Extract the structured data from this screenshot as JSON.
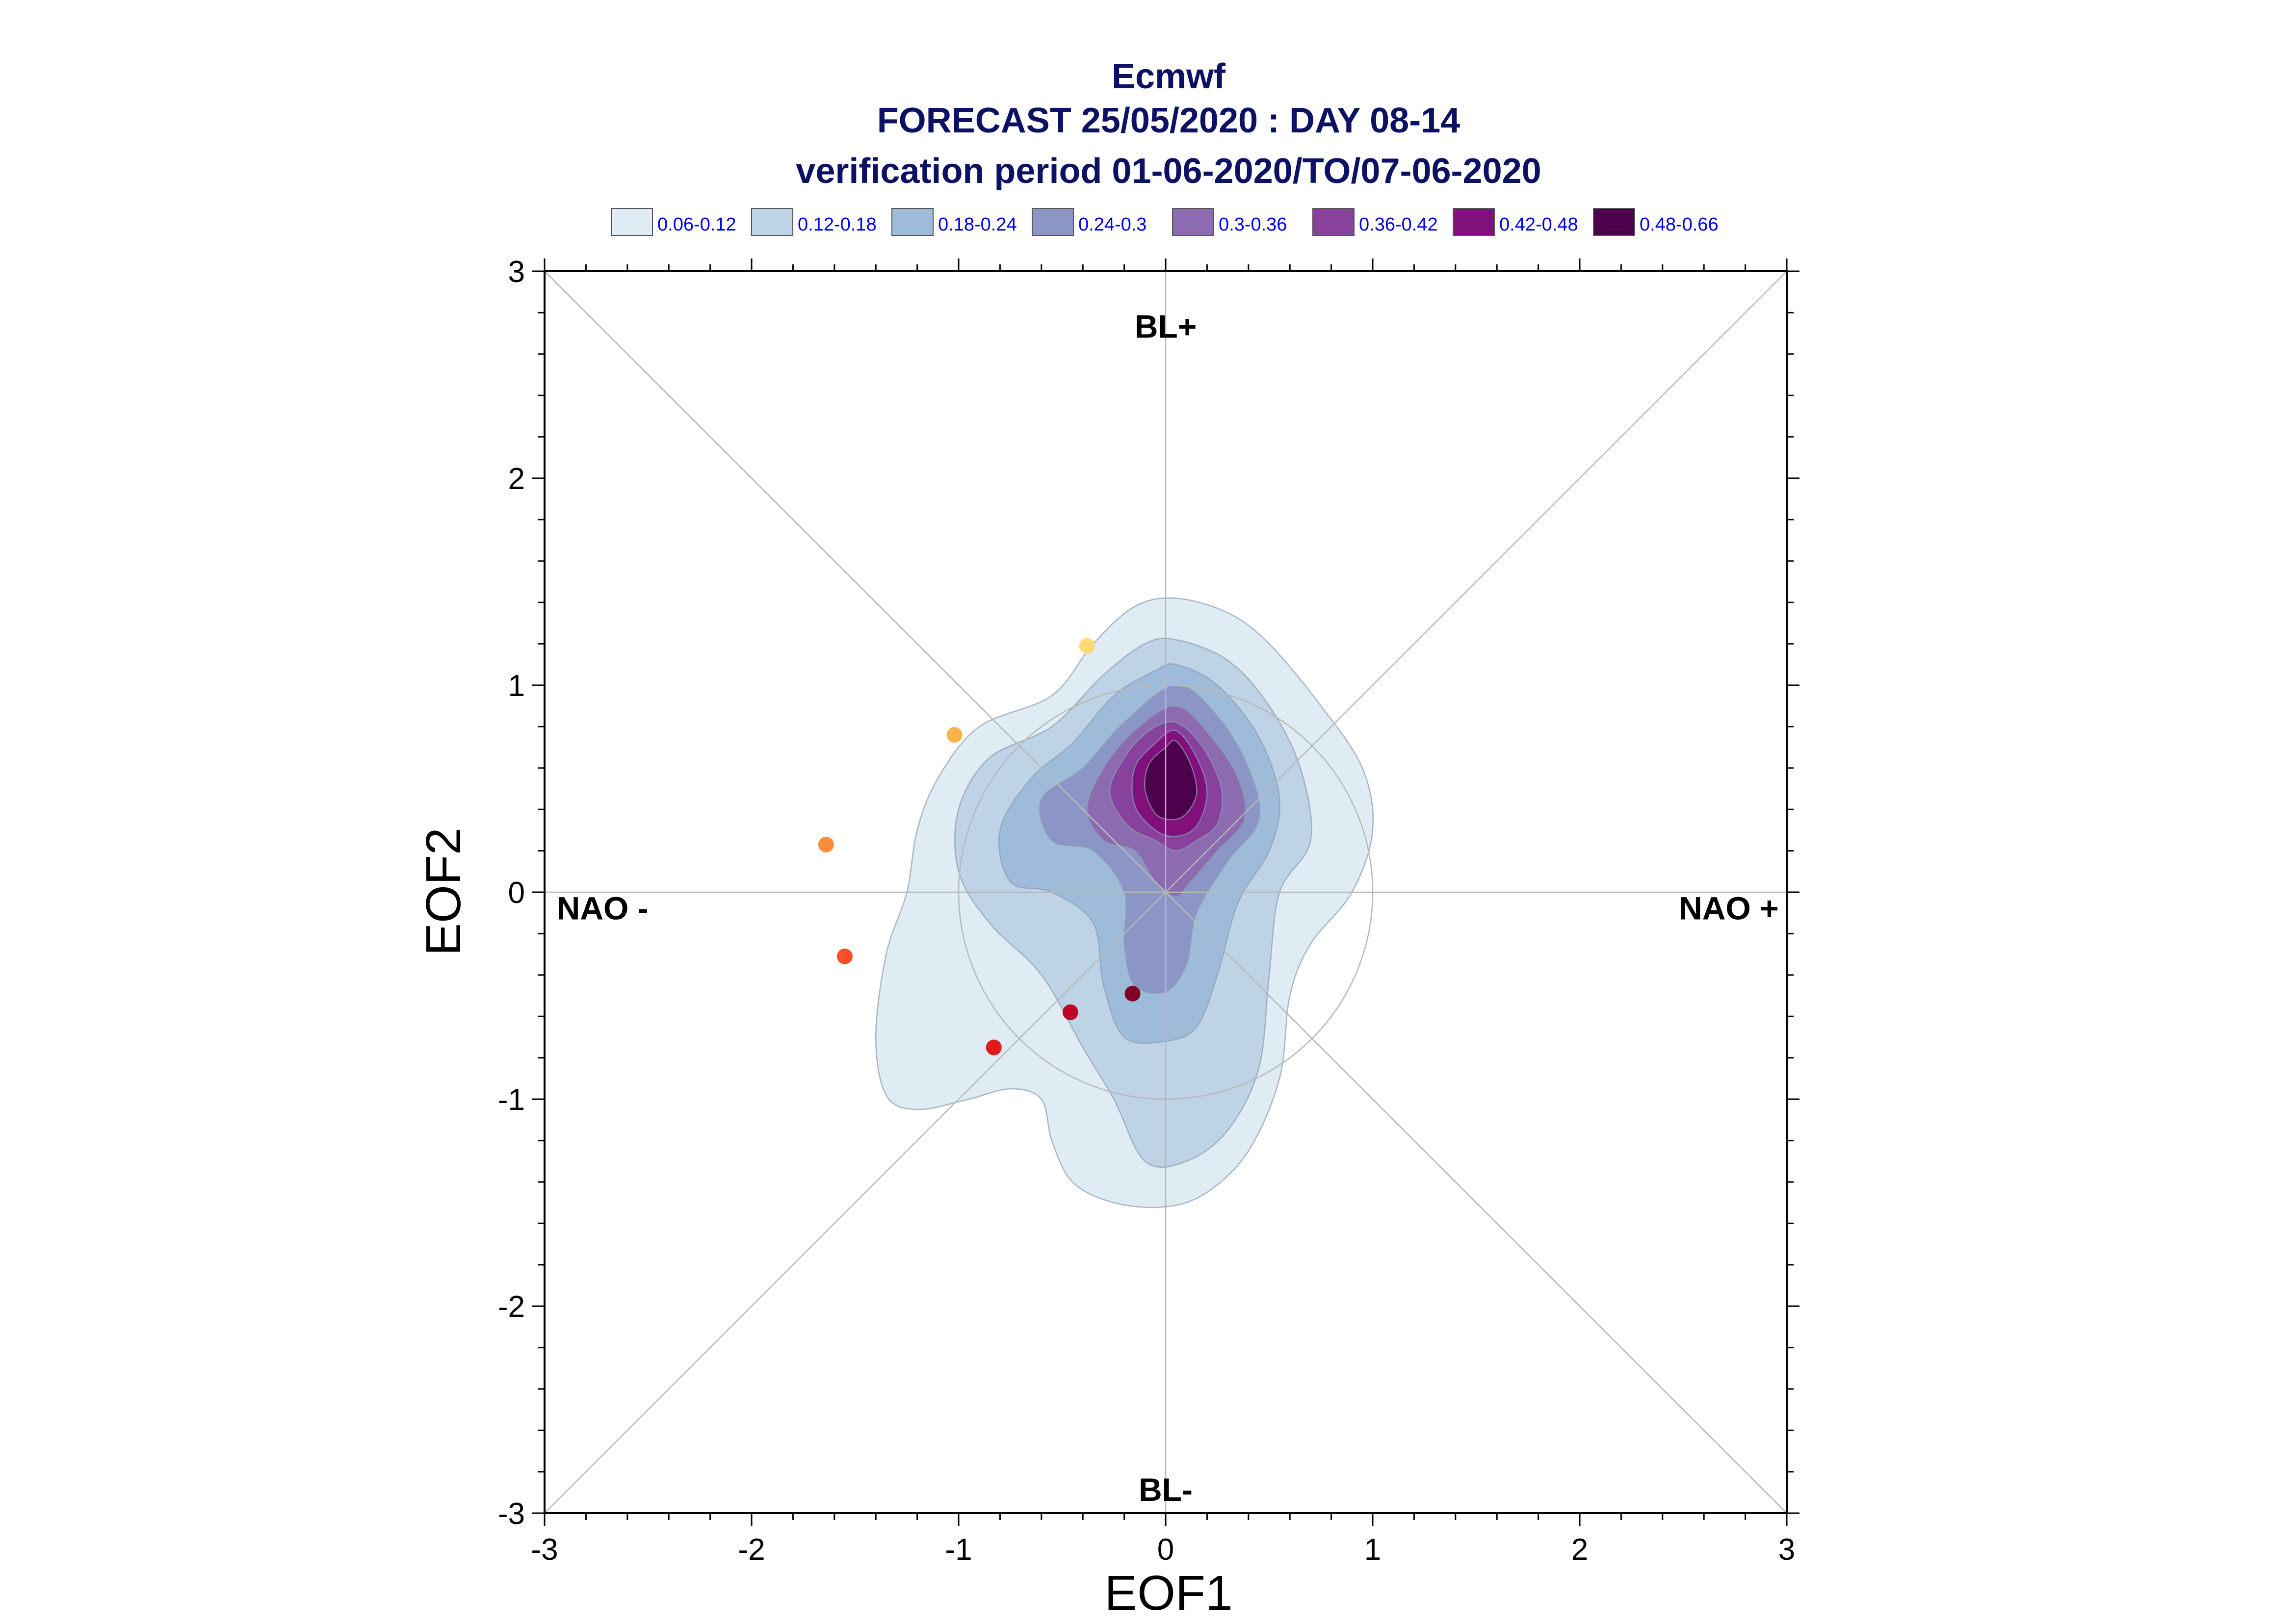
{
  "chart_data": {
    "type": "scatter",
    "title": "Ecmwf",
    "subtitle": "FORECAST 25/05/2020 : DAY 08-14",
    "subtitle2": "verification period 01-06-2020/TO/07-06-2020",
    "xlabel": "EOF1",
    "ylabel": "EOF2",
    "xlim": [
      -3,
      3
    ],
    "ylim": [
      -3,
      3
    ],
    "x_ticks": [
      "-3",
      "-2",
      "-1",
      "0",
      "1",
      "2",
      "3"
    ],
    "y_ticks": [
      "-3",
      "-2",
      "-1",
      "0",
      "1",
      "2",
      "3"
    ],
    "grid": false,
    "reference_circle_radius": 1,
    "regime_labels": [
      {
        "text": "BL+",
        "x": 0,
        "y": 2.72
      },
      {
        "text": "BL-",
        "x": 0,
        "y": -2.9
      },
      {
        "text": "NAO -",
        "x": -2.72,
        "y": -0.09
      },
      {
        "text": "NAO +",
        "x": 2.72,
        "y": -0.09
      }
    ],
    "legend": {
      "placement": "top",
      "entries": [
        {
          "label": "0.06-0.12",
          "color": "#e0ecf4"
        },
        {
          "label": "0.12-0.18",
          "color": "#bfd3e6"
        },
        {
          "label": "0.18-0.24",
          "color": "#9ebcda"
        },
        {
          "label": "0.24-0.3",
          "color": "#8c96c6"
        },
        {
          "label": "0.3-0.36",
          "color": "#8c6bb1"
        },
        {
          "label": "0.36-0.42",
          "color": "#88419d"
        },
        {
          "label": "0.42-0.48",
          "color": "#810f7c"
        },
        {
          "label": "0.48-0.66",
          "color": "#4d004b"
        }
      ]
    },
    "density_contours": [
      {
        "level": "0.06-0.12",
        "color": "#e0ecf4",
        "points": [
          [
            0.05,
            1.42
          ],
          [
            0.3,
            1.35
          ],
          [
            0.5,
            1.2
          ],
          [
            0.75,
            0.9
          ],
          [
            0.95,
            0.6
          ],
          [
            1.0,
            0.3
          ],
          [
            0.9,
            0.0
          ],
          [
            0.7,
            -0.25
          ],
          [
            0.6,
            -0.5
          ],
          [
            0.55,
            -0.9
          ],
          [
            0.4,
            -1.25
          ],
          [
            0.2,
            -1.45
          ],
          [
            0.0,
            -1.52
          ],
          [
            -0.25,
            -1.5
          ],
          [
            -0.45,
            -1.4
          ],
          [
            -0.55,
            -1.2
          ],
          [
            -0.6,
            -1.0
          ],
          [
            -0.75,
            -0.95
          ],
          [
            -0.95,
            -1.0
          ],
          [
            -1.2,
            -1.05
          ],
          [
            -1.35,
            -0.98
          ],
          [
            -1.4,
            -0.7
          ],
          [
            -1.35,
            -0.3
          ],
          [
            -1.25,
            0.0
          ],
          [
            -1.2,
            0.3
          ],
          [
            -1.1,
            0.55
          ],
          [
            -0.9,
            0.8
          ],
          [
            -0.55,
            0.95
          ],
          [
            -0.35,
            1.2
          ],
          [
            -0.15,
            1.38
          ]
        ]
      },
      {
        "level": "0.12-0.18",
        "color": "#bfd3e6",
        "points": [
          [
            0.05,
            1.22
          ],
          [
            0.3,
            1.12
          ],
          [
            0.5,
            0.9
          ],
          [
            0.65,
            0.6
          ],
          [
            0.7,
            0.25
          ],
          [
            0.55,
            0.0
          ],
          [
            0.5,
            -0.4
          ],
          [
            0.45,
            -0.85
          ],
          [
            0.3,
            -1.15
          ],
          [
            0.1,
            -1.3
          ],
          [
            -0.1,
            -1.3
          ],
          [
            -0.25,
            -1.0
          ],
          [
            -0.4,
            -0.75
          ],
          [
            -0.6,
            -0.4
          ],
          [
            -0.85,
            -0.15
          ],
          [
            -1.0,
            0.1
          ],
          [
            -1.0,
            0.4
          ],
          [
            -0.85,
            0.65
          ],
          [
            -0.55,
            0.8
          ],
          [
            -0.3,
            1.05
          ],
          [
            -0.1,
            1.2
          ]
        ]
      },
      {
        "level": "0.18-0.24",
        "color": "#9ebcda",
        "points": [
          [
            0.05,
            1.1
          ],
          [
            0.25,
            1.0
          ],
          [
            0.45,
            0.75
          ],
          [
            0.55,
            0.45
          ],
          [
            0.5,
            0.2
          ],
          [
            0.35,
            -0.05
          ],
          [
            0.25,
            -0.4
          ],
          [
            0.15,
            -0.65
          ],
          [
            0.0,
            -0.72
          ],
          [
            -0.2,
            -0.7
          ],
          [
            -0.3,
            -0.45
          ],
          [
            -0.35,
            -0.15
          ],
          [
            -0.55,
            0.0
          ],
          [
            -0.75,
            0.05
          ],
          [
            -0.8,
            0.3
          ],
          [
            -0.65,
            0.55
          ],
          [
            -0.45,
            0.72
          ],
          [
            -0.25,
            0.95
          ],
          [
            -0.05,
            1.07
          ]
        ]
      },
      {
        "level": "0.24-0.3",
        "color": "#8c96c6",
        "points": [
          [
            0.05,
            1.0
          ],
          [
            0.25,
            0.85
          ],
          [
            0.4,
            0.6
          ],
          [
            0.45,
            0.35
          ],
          [
            0.3,
            0.15
          ],
          [
            0.15,
            -0.1
          ],
          [
            0.1,
            -0.35
          ],
          [
            0.0,
            -0.48
          ],
          [
            -0.15,
            -0.45
          ],
          [
            -0.2,
            -0.25
          ],
          [
            -0.2,
            0.0
          ],
          [
            -0.35,
            0.2
          ],
          [
            -0.55,
            0.25
          ],
          [
            -0.6,
            0.45
          ],
          [
            -0.4,
            0.6
          ],
          [
            -0.2,
            0.82
          ]
        ]
      },
      {
        "level": "0.3-0.36",
        "color": "#8c6bb1",
        "points": [
          [
            0.05,
            0.9
          ],
          [
            0.22,
            0.75
          ],
          [
            0.35,
            0.55
          ],
          [
            0.38,
            0.35
          ],
          [
            0.25,
            0.2
          ],
          [
            0.12,
            0.05
          ],
          [
            0.05,
            -0.02
          ],
          [
            -0.05,
            0.05
          ],
          [
            -0.15,
            0.2
          ],
          [
            -0.3,
            0.25
          ],
          [
            -0.38,
            0.4
          ],
          [
            -0.3,
            0.6
          ],
          [
            -0.15,
            0.78
          ]
        ]
      },
      {
        "level": "0.36-0.42",
        "color": "#88419d",
        "points": [
          [
            0.05,
            0.82
          ],
          [
            0.18,
            0.7
          ],
          [
            0.27,
            0.5
          ],
          [
            0.25,
            0.33
          ],
          [
            0.15,
            0.25
          ],
          [
            0.05,
            0.2
          ],
          [
            -0.05,
            0.25
          ],
          [
            -0.18,
            0.32
          ],
          [
            -0.27,
            0.48
          ],
          [
            -0.2,
            0.65
          ],
          [
            -0.08,
            0.78
          ]
        ]
      },
      {
        "level": "0.42-0.48",
        "color": "#810f7c",
        "points": [
          [
            0.05,
            0.78
          ],
          [
            0.15,
            0.65
          ],
          [
            0.2,
            0.48
          ],
          [
            0.15,
            0.32
          ],
          [
            0.05,
            0.27
          ],
          [
            -0.05,
            0.3
          ],
          [
            -0.15,
            0.42
          ],
          [
            -0.15,
            0.6
          ],
          [
            -0.05,
            0.72
          ]
        ]
      },
      {
        "level": "0.48-0.66",
        "color": "#4d004b",
        "points": [
          [
            0.05,
            0.73
          ],
          [
            0.12,
            0.62
          ],
          [
            0.15,
            0.48
          ],
          [
            0.1,
            0.38
          ],
          [
            0.03,
            0.35
          ],
          [
            -0.05,
            0.38
          ],
          [
            -0.1,
            0.5
          ],
          [
            -0.08,
            0.62
          ],
          [
            0.0,
            0.7
          ]
        ]
      }
    ],
    "series": [
      {
        "values": [
          {
            "x": -0.38,
            "y": 1.19,
            "color": "#fed976"
          },
          {
            "x": -1.02,
            "y": 0.76,
            "color": "#feb24c"
          },
          {
            "x": -1.64,
            "y": 0.23,
            "color": "#fd8d3c"
          },
          {
            "x": -1.55,
            "y": -0.31,
            "color": "#fc4e2a"
          },
          {
            "x": -0.83,
            "y": -0.75,
            "color": "#e31a1c"
          },
          {
            "x": -0.46,
            "y": -0.58,
            "color": "#bd0026"
          },
          {
            "x": -0.16,
            "y": -0.49,
            "color": "#800026"
          }
        ]
      }
    ]
  }
}
